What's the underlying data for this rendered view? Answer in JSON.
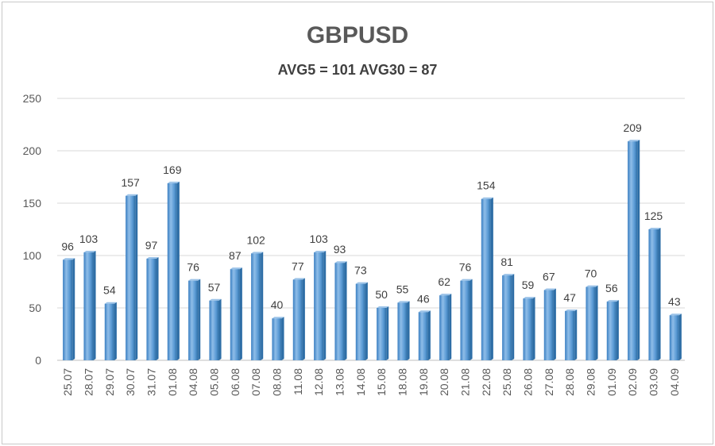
{
  "chart_data": {
    "type": "bar",
    "title": "GBPUSD",
    "subtitle": "AVG5 = 101 AVG30 = 87",
    "categories": [
      "25.07",
      "28.07",
      "29.07",
      "30.07",
      "31.07",
      "01.08",
      "04.08",
      "05.08",
      "06.08",
      "07.08",
      "08.08",
      "11.08",
      "12.08",
      "13.08",
      "14.08",
      "15.08",
      "18.08",
      "19.08",
      "20.08",
      "21.08",
      "22.08",
      "25.08",
      "26.08",
      "27.08",
      "28.08",
      "29.08",
      "01.09",
      "02.09",
      "03.09",
      "04.09"
    ],
    "values": [
      96,
      103,
      54,
      157,
      97,
      169,
      76,
      57,
      87,
      102,
      40,
      77,
      103,
      93,
      73,
      50,
      55,
      46,
      62,
      76,
      154,
      81,
      59,
      67,
      47,
      70,
      56,
      209,
      125,
      43
    ],
    "ylim": [
      0,
      250
    ],
    "yticks": [
      0,
      50,
      100,
      150,
      200,
      250
    ],
    "xlabel": "",
    "ylabel": "",
    "grid": true,
    "legend": "none",
    "colors": {
      "bar": "#5b9bd5",
      "bar_dark": "#2e6ea6",
      "bar_light": "#9cc3e8",
      "grid": "#d9d9d9",
      "axis": "#bfbfbf"
    }
  }
}
